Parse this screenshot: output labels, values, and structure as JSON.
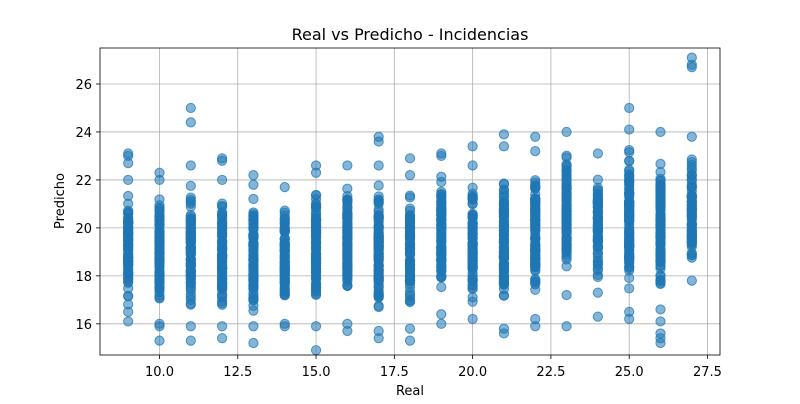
{
  "chart_data": {
    "type": "scatter",
    "title": "Real vs Predicho - Incidencias",
    "xlabel": "Real",
    "ylabel": "Predicho",
    "xlim": [
      8.1,
      27.9
    ],
    "ylim": [
      14.7,
      27.5
    ],
    "xticks": [
      10.0,
      12.5,
      15.0,
      17.5,
      20.0,
      22.5,
      25.0,
      27.5
    ],
    "xtick_labels": [
      "10.0",
      "12.5",
      "15.0",
      "17.5",
      "20.0",
      "22.5",
      "25.0",
      "27.5"
    ],
    "yticks": [
      16,
      18,
      20,
      22,
      24,
      26
    ],
    "ytick_labels": [
      "16",
      "18",
      "20",
      "22",
      "24",
      "26"
    ],
    "grid": true,
    "marker_color": "#1f77b4",
    "marker_alpha": 0.55,
    "points_by_x": [
      {
        "x": 9,
        "y_range": [
          16.1,
          22.0
        ],
        "outliers": [
          16.5,
          22.7,
          23.0,
          23.1
        ]
      },
      {
        "x": 10,
        "y_range": [
          16.0,
          22.0
        ],
        "outliers": [
          15.3,
          15.9,
          22.3
        ]
      },
      {
        "x": 11,
        "y_range": [
          15.9,
          22.6
        ],
        "outliers": [
          15.3,
          24.4,
          25.0
        ]
      },
      {
        "x": 12,
        "y_range": [
          15.9,
          22.0
        ],
        "outliers": [
          15.4,
          22.8,
          22.9
        ]
      },
      {
        "x": 13,
        "y_range": [
          15.9,
          21.8
        ],
        "outliers": [
          15.2,
          22.2
        ]
      },
      {
        "x": 14,
        "y_range": [
          16.0,
          21.7
        ],
        "outliers": [
          15.9
        ]
      },
      {
        "x": 15,
        "y_range": [
          15.9,
          22.3
        ],
        "outliers": [
          14.9,
          22.6
        ]
      },
      {
        "x": 16,
        "y_range": [
          16.0,
          22.6
        ],
        "outliers": [
          15.7
        ]
      },
      {
        "x": 17,
        "y_range": [
          15.7,
          22.6
        ],
        "outliers": [
          15.4,
          23.6,
          23.8
        ]
      },
      {
        "x": 18,
        "y_range": [
          15.8,
          22.2
        ],
        "outliers": [
          15.3,
          22.9
        ]
      },
      {
        "x": 19,
        "y_range": [
          16.4,
          23.0
        ],
        "outliers": [
          16.0,
          23.1
        ]
      },
      {
        "x": 20,
        "y_range": [
          16.2,
          22.6
        ],
        "outliers": [
          23.4
        ]
      },
      {
        "x": 21,
        "y_range": [
          15.8,
          23.4
        ],
        "outliers": [
          15.6,
          23.9
        ]
      },
      {
        "x": 22,
        "y_range": [
          16.2,
          23.2
        ],
        "outliers": [
          15.9,
          23.8
        ]
      },
      {
        "x": 23,
        "y_range": [
          17.2,
          24.0
        ],
        "outliers": [
          15.9
        ]
      },
      {
        "x": 24,
        "y_range": [
          17.3,
          23.1
        ],
        "outliers": [
          16.3
        ]
      },
      {
        "x": 25,
        "y_range": [
          16.5,
          24.1
        ],
        "outliers": [
          16.2,
          25.0
        ]
      },
      {
        "x": 26,
        "y_range": [
          16.6,
          24.0
        ],
        "outliers": [
          15.2,
          15.4,
          15.6,
          16.1
        ]
      },
      {
        "x": 27,
        "y_range": [
          17.8,
          23.8
        ],
        "outliers": [
          26.7,
          26.8,
          27.1
        ]
      }
    ]
  }
}
